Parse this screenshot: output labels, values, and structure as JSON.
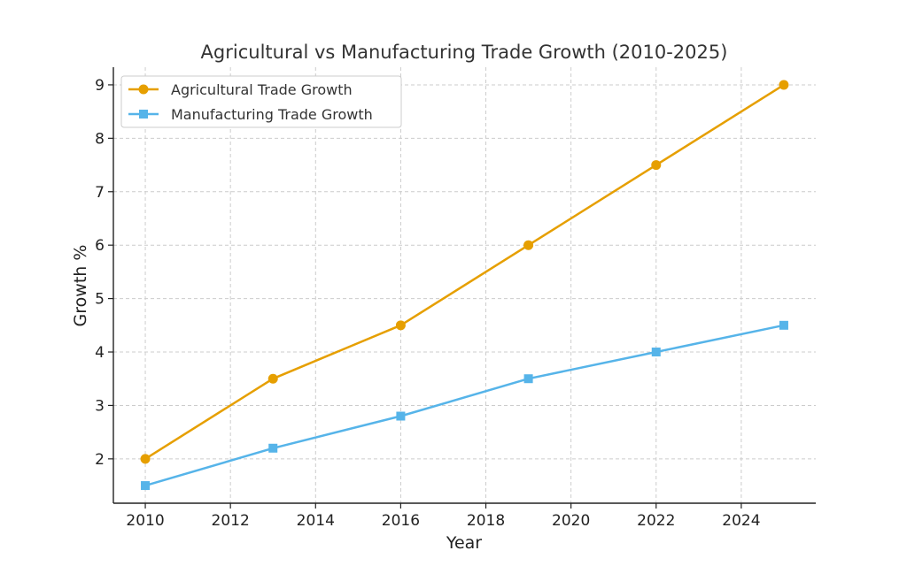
{
  "chart_data": {
    "type": "line",
    "title": "Agricultural vs Manufacturing Trade Growth (2010-2025)",
    "xlabel": "Year",
    "ylabel": "Growth %",
    "xlim": [
      2009.25,
      2025.75
    ],
    "ylim": [
      1.17,
      9.33
    ],
    "xticks": [
      2010,
      2012,
      2014,
      2016,
      2018,
      2020,
      2022,
      2024
    ],
    "yticks": [
      2,
      3,
      4,
      5,
      6,
      7,
      8,
      9
    ],
    "grid": true,
    "legend_position": "top-left",
    "series": [
      {
        "name": "Agricultural Trade Growth",
        "color": "#E69F00",
        "marker": "circle",
        "x": [
          2010,
          2013,
          2016,
          2019,
          2022,
          2025
        ],
        "y": [
          2,
          3.5,
          4.5,
          6,
          7.5,
          9
        ]
      },
      {
        "name": "Manufacturing Trade Growth",
        "color": "#56B4E9",
        "marker": "square",
        "x": [
          2010,
          2013,
          2016,
          2019,
          2022,
          2025
        ],
        "y": [
          1.5,
          2.2,
          2.8,
          3.5,
          4,
          4.5
        ]
      }
    ]
  }
}
